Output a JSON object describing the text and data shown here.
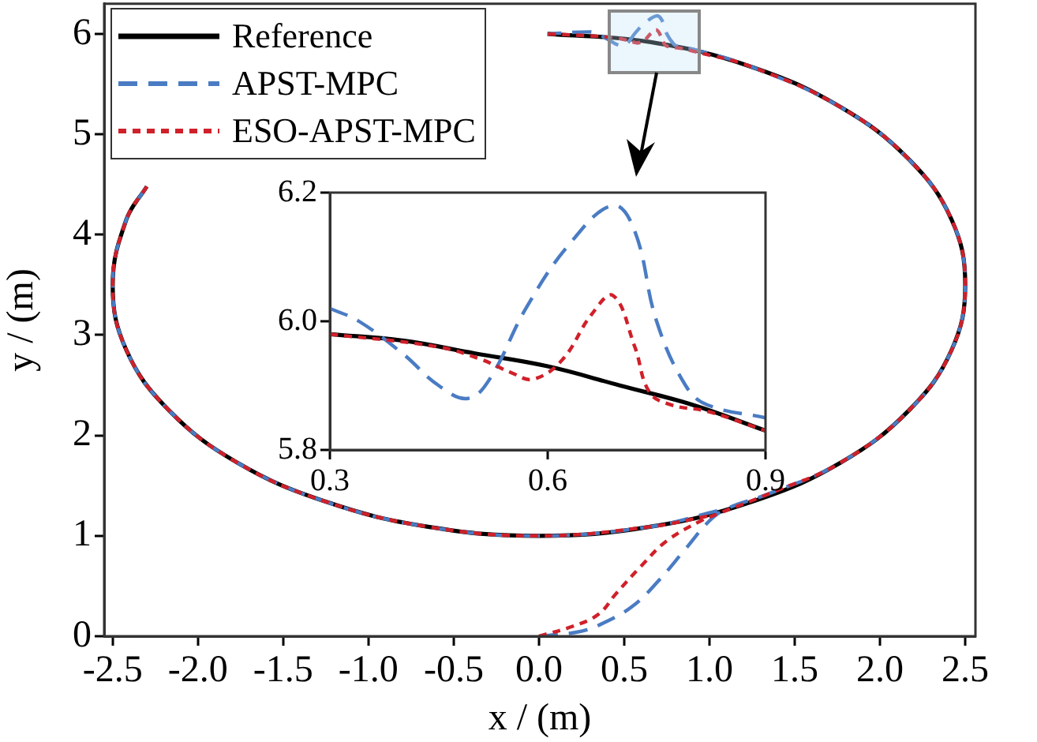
{
  "chart_data": [
    {
      "type": "line",
      "xlabel": "x / (m)",
      "ylabel": "y / (m)",
      "xlim": [
        -2.55,
        2.56
      ],
      "ylim": [
        0,
        6.3
      ],
      "xticks": [
        {
          "value": -2.5,
          "label": "-2.5"
        },
        {
          "value": -2,
          "label": "-2.0"
        },
        {
          "value": -1.5,
          "label": "-1.5"
        },
        {
          "value": -1,
          "label": "-1.0"
        },
        {
          "value": -0.5,
          "label": "-0.5"
        },
        {
          "value": 0,
          "label": "0.0"
        },
        {
          "value": 0.5,
          "label": "0.5"
        },
        {
          "value": 1,
          "label": "1.0"
        },
        {
          "value": 1.5,
          "label": "1.5"
        },
        {
          "value": 2,
          "label": "2.0"
        },
        {
          "value": 2.5,
          "label": "2.5"
        }
      ],
      "yticks": [
        0,
        1,
        2,
        3,
        4,
        5,
        6
      ],
      "legend": "top left",
      "marker": "none",
      "series": [
        {
          "name": "Reference",
          "color": "#000000",
          "line_style": "solid",
          "x": [
            0.05,
            0.65,
            1.25,
            1.77,
            2.17,
            2.42,
            2.5,
            2.42,
            2.17,
            1.77,
            1.25,
            0.65,
            0,
            -0.65,
            -1.25,
            -1.77,
            -2.17,
            -2.42,
            -2.5,
            -2.42,
            -2.3
          ],
          "values": [
            6.0,
            5.92,
            5.67,
            5.27,
            4.75,
            4.15,
            3.5,
            2.85,
            2.25,
            1.73,
            1.34,
            1.09,
            1,
            1.09,
            1.34,
            1.73,
            2.25,
            2.85,
            3.5,
            4.15,
            4.48
          ]
        },
        {
          "name": "APST-MPC",
          "color": "#4a7cc4",
          "line_style": "dashed",
          "x": [
            0,
            0.25,
            0.4,
            0.55,
            0.7,
            0.85,
            1.0,
            1.1,
            1.35,
            1.77,
            2.17,
            2.42,
            2.5,
            2.42,
            2.17,
            1.77,
            1.25,
            0.9,
            0.82,
            0.79,
            0.75,
            0.72,
            0.69,
            0.63,
            0.57,
            0.52,
            0.49,
            0.45,
            0.4,
            0.34,
            0.3,
            0.05,
            -1.25,
            -2.3,
            -2.42,
            -2.5,
            -2.42,
            -2.17,
            -1.77,
            -1.25,
            -0.65,
            0,
            0.65,
            1.05
          ],
          "values": [
            0,
            0.05,
            0.15,
            0.3,
            0.55,
            0.85,
            1.15,
            1.27,
            1.42,
            1.73,
            2.25,
            2.85,
            3.5,
            4.15,
            4.75,
            5.27,
            5.67,
            5.85,
            5.87,
            5.9,
            6.0,
            6.14,
            6.18,
            6.12,
            6.02,
            5.91,
            5.88,
            5.9,
            5.95,
            6.0,
            6.02,
            6.0,
            null,
            4.48,
            4.15,
            3.5,
            2.85,
            2.25,
            1.73,
            1.34,
            1.09,
            1,
            1.09,
            1.25
          ]
        },
        {
          "name": "ESO-APST-MPC",
          "color": "#d0202a",
          "line_style": "dotted",
          "x": [
            0,
            0.2,
            0.35,
            0.45,
            0.6,
            0.75,
            0.95,
            1.05,
            1.35,
            1.77,
            2.17,
            2.42,
            2.5,
            2.42,
            2.17,
            1.77,
            1.25,
            0.9,
            0.82,
            0.77,
            0.74,
            0.72,
            0.69,
            0.66,
            0.62,
            0.58,
            0.55,
            0.51,
            0.45,
            0.3,
            0.05,
            -1.25,
            -2.3,
            -2.42,
            -2.5,
            -2.42,
            -2.17,
            -1.77,
            -1.25,
            -0.65,
            0,
            0.65,
            1.0
          ],
          "values": [
            0,
            0.1,
            0.22,
            0.42,
            0.7,
            0.95,
            1.15,
            1.22,
            1.42,
            1.73,
            2.25,
            2.85,
            3.5,
            4.15,
            4.75,
            5.27,
            5.67,
            5.83,
            5.86,
            5.87,
            5.89,
            5.96,
            6.04,
            6.01,
            5.94,
            5.91,
            5.92,
            5.94,
            5.96,
            5.98,
            6.0,
            null,
            4.48,
            4.15,
            3.5,
            2.85,
            2.25,
            1.73,
            1.34,
            1.09,
            1,
            1.09,
            1.2
          ]
        }
      ]
    },
    {
      "type": "line",
      "xlim": [
        0.3,
        0.9
      ],
      "ylim": [
        5.8,
        6.2
      ],
      "xticks": [
        0.3,
        0.6,
        0.9
      ],
      "yticks": [
        {
          "value": 5.8,
          "label": "5.8"
        },
        {
          "value": 6,
          "label": "6.0"
        },
        {
          "value": 6.2,
          "label": "6.2"
        }
      ],
      "marker": "none",
      "series": [
        {
          "color": "#000000",
          "line_style": "solid",
          "x": [
            0.3,
            0.4,
            0.5,
            0.6,
            0.7,
            0.8,
            0.9
          ],
          "values": [
            5.98,
            5.97,
            5.95,
            5.93,
            5.9,
            5.87,
            5.83
          ]
        },
        {
          "color": "#4a7cc4",
          "line_style": "dashed",
          "x": [
            0.3,
            0.34,
            0.4,
            0.45,
            0.49,
            0.52,
            0.57,
            0.63,
            0.69,
            0.72,
            0.75,
            0.79,
            0.82,
            0.9
          ],
          "values": [
            6.02,
            6.0,
            5.95,
            5.9,
            5.88,
            5.91,
            6.02,
            6.12,
            6.18,
            6.14,
            6.0,
            5.9,
            5.87,
            5.85
          ]
        },
        {
          "color": "#d0202a",
          "line_style": "dotted",
          "x": [
            0.3,
            0.45,
            0.51,
            0.55,
            0.58,
            0.62,
            0.66,
            0.69,
            0.72,
            0.74,
            0.77,
            0.82,
            0.9
          ],
          "values": [
            5.98,
            5.96,
            5.94,
            5.92,
            5.91,
            5.94,
            6.01,
            6.04,
            5.96,
            5.89,
            5.87,
            5.86,
            5.83
          ]
        }
      ]
    }
  ]
}
